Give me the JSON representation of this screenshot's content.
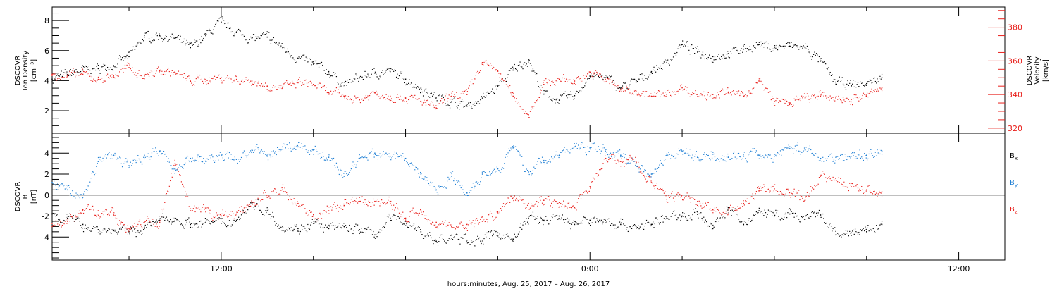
{
  "chart_data": [
    {
      "type": "scatter",
      "panel": "top",
      "ylabel": [
        "DSCOVR",
        "Ion Density",
        "[cm⁻³]"
      ],
      "ylabel_right": [
        "DSCOVR",
        "Velocity",
        "[km/s]"
      ],
      "ylim": [
        0.5,
        8.9
      ],
      "ylim_right": [
        317,
        392
      ],
      "yticks": [
        2,
        4,
        6,
        8
      ],
      "yticks_right": [
        320,
        340,
        360,
        380
      ],
      "xlim_hours": [
        6.5,
        37.5
      ],
      "series": [
        {
          "key": "density",
          "color": "#000000",
          "axis": "left",
          "x": [
            6.5,
            7,
            7.5,
            8,
            8.5,
            9,
            9.5,
            10,
            10.5,
            11,
            11.5,
            12,
            12.5,
            13,
            13.5,
            14,
            14.5,
            15,
            15.5,
            16,
            16.5,
            17,
            17.5,
            18,
            18.5,
            19,
            19.5,
            20,
            20.5,
            21,
            21.5,
            22,
            22.5,
            23,
            23.5,
            24,
            24.5,
            25,
            25.5,
            26,
            26.5,
            27,
            27.5,
            28,
            28.5,
            29,
            29.5,
            30,
            30.5,
            31,
            31.5,
            32,
            32.5,
            33,
            33.5
          ],
          "y": [
            4.1,
            4.4,
            4.7,
            4.8,
            5.0,
            5.6,
            6.9,
            7.0,
            6.8,
            6.2,
            7.0,
            7.9,
            7.2,
            6.8,
            6.9,
            6.2,
            5.5,
            5.1,
            4.6,
            3.7,
            4.2,
            4.5,
            4.6,
            4.1,
            3.5,
            2.9,
            2.6,
            2.3,
            2.8,
            3.6,
            4.7,
            5.4,
            3.1,
            2.7,
            3.0,
            4.3,
            4.2,
            3.5,
            3.9,
            4.6,
            5.2,
            6.4,
            5.9,
            5.6,
            5.8,
            6.1,
            6.4,
            6.2,
            6.3,
            6.2,
            5.3,
            3.9,
            3.7,
            3.8,
            4.2
          ]
        },
        {
          "key": "velocity",
          "color": "#e8201c",
          "axis": "right",
          "x": [
            6.5,
            7,
            7.5,
            8,
            8.5,
            9,
            9.5,
            10,
            10.5,
            11,
            11.5,
            12,
            12.5,
            13,
            13.5,
            14,
            14.5,
            15,
            15.5,
            16,
            16.5,
            17,
            17.5,
            18,
            18.5,
            19,
            19.5,
            20,
            20.5,
            21,
            21.5,
            22,
            22.5,
            23,
            23.5,
            24,
            24.5,
            25,
            25.5,
            26,
            26.5,
            27,
            27.5,
            28,
            28.5,
            29,
            29.5,
            30,
            30.5,
            31,
            31.5,
            32,
            32.5,
            33,
            33.5
          ],
          "y": [
            352,
            351,
            352,
            349,
            351,
            356,
            351,
            354,
            353,
            348,
            349,
            350,
            349,
            348,
            345,
            344,
            347,
            346,
            341,
            339,
            337,
            341,
            339,
            338,
            336,
            332,
            339,
            340,
            359,
            354,
            339,
            328,
            346,
            349,
            348,
            353,
            349,
            343,
            342,
            339,
            340,
            344,
            340,
            340,
            341,
            339,
            348,
            336,
            335,
            338,
            339,
            338,
            337,
            339,
            344
          ]
        }
      ]
    },
    {
      "type": "scatter",
      "panel": "bottom",
      "ylabel": [
        "DSCOVR",
        "B",
        "[nT]"
      ],
      "ylim": [
        -6.2,
        5.9
      ],
      "yticks": [
        -4,
        -2,
        0,
        2,
        4
      ],
      "xlim_hours": [
        6.5,
        37.5
      ],
      "zero_line": true,
      "series": [
        {
          "key": "bx",
          "name": "B",
          "sub": "x",
          "color": "#000000",
          "x": [
            6.5,
            7,
            7.5,
            8,
            8.5,
            9,
            9.5,
            10,
            10.5,
            11,
            11.5,
            12,
            12.5,
            13,
            13.5,
            14,
            14.5,
            15,
            15.5,
            16,
            16.5,
            17,
            17.5,
            18,
            18.5,
            19,
            19.5,
            20,
            20.5,
            21,
            21.5,
            22,
            22.5,
            23,
            23.5,
            24,
            24.5,
            25,
            25.5,
            26,
            26.5,
            27,
            27.5,
            28,
            28.5,
            29,
            29.5,
            30,
            30.5,
            31,
            31.5,
            32,
            32.5,
            33,
            33.5
          ],
          "y": [
            -1.8,
            -2.2,
            -2.8,
            -3.3,
            -3.4,
            -3.5,
            -3.2,
            -2.4,
            -2.2,
            -2.8,
            -2.6,
            -2.7,
            -2.4,
            -0.8,
            -1.5,
            -3.0,
            -3.2,
            -2.7,
            -3.2,
            -3.0,
            -3.3,
            -3.8,
            -2.2,
            -2.5,
            -3.5,
            -4.4,
            -4.1,
            -4.3,
            -4.3,
            -3.6,
            -4.2,
            -2.2,
            -2.4,
            -2.0,
            -2.8,
            -2.4,
            -2.4,
            -2.8,
            -3.0,
            -2.8,
            -2.2,
            -2.0,
            -1.6,
            -3.2,
            -1.2,
            -2.8,
            -1.5,
            -2.0,
            -1.8,
            -2.3,
            -1.9,
            -3.8,
            -3.6,
            -3.5,
            -2.8
          ]
        },
        {
          "key": "by",
          "name": "B",
          "sub": "y",
          "color": "#1f7fd4",
          "x": [
            6.5,
            7,
            7.5,
            8,
            8.5,
            9,
            9.5,
            10,
            10.5,
            11,
            11.5,
            12,
            12.5,
            13,
            13.5,
            14,
            14.5,
            15,
            15.5,
            16,
            16.5,
            17,
            17.5,
            18,
            18.5,
            19,
            19.5,
            20,
            20.5,
            21,
            21.5,
            22,
            22.5,
            23,
            23.5,
            24,
            24.5,
            25,
            25.5,
            26,
            26.5,
            27,
            27.5,
            28,
            28.5,
            29,
            29.5,
            30,
            30.5,
            31,
            31.5,
            32,
            32.5,
            33,
            33.5
          ],
          "y": [
            1.2,
            0.5,
            -0.2,
            3.2,
            3.8,
            2.8,
            3.8,
            4.2,
            2.5,
            3.5,
            3.2,
            3.8,
            3.4,
            4.3,
            3.7,
            4.6,
            4.6,
            4.3,
            3.6,
            1.8,
            3.5,
            4.0,
            3.7,
            3.5,
            2.0,
            0.5,
            1.8,
            0.2,
            2.0,
            2.5,
            4.5,
            2.2,
            3.3,
            3.8,
            4.6,
            4.5,
            4.2,
            3.8,
            3.0,
            2.0,
            3.8,
            4.2,
            3.6,
            3.9,
            3.6,
            3.7,
            3.8,
            3.7,
            4.6,
            4.3,
            3.5,
            3.6,
            3.7,
            3.8,
            4.2
          ]
        },
        {
          "key": "bz",
          "name": "B",
          "sub": "z",
          "color": "#e8201c",
          "x": [
            6.5,
            7,
            7.5,
            8,
            8.5,
            9,
            9.5,
            10,
            10.5,
            11,
            11.5,
            12,
            12.5,
            13,
            13.5,
            14,
            14.5,
            15,
            15.5,
            16,
            16.5,
            17,
            17.5,
            18,
            18.5,
            19,
            19.5,
            20,
            20.5,
            21,
            21.5,
            22,
            22.5,
            23,
            23.5,
            24,
            24.5,
            25,
            25.5,
            26,
            26.5,
            27,
            27.5,
            28,
            28.5,
            29,
            29.5,
            30,
            30.5,
            31,
            31.5,
            32,
            32.5,
            33,
            33.5
          ],
          "y": [
            -3.0,
            -2.5,
            -1.4,
            -1.5,
            -1.9,
            -3.2,
            -2.6,
            -2.6,
            3.0,
            -1.5,
            -1.6,
            -2.0,
            -1.8,
            -0.7,
            0.0,
            0.5,
            -0.8,
            -2.0,
            -1.5,
            -1.0,
            -0.6,
            -0.6,
            -0.8,
            -2.2,
            -1.5,
            -2.6,
            -3.0,
            -2.8,
            -2.5,
            -1.6,
            -0.2,
            -0.8,
            -0.5,
            -0.7,
            -1.2,
            0.8,
            3.5,
            3.2,
            3.2,
            1.2,
            -0.4,
            0.0,
            -0.6,
            -1.4,
            -1.8,
            -0.8,
            0.4,
            0.6,
            0.0,
            -0.5,
            1.8,
            1.6,
            0.8,
            0.5,
            0.3
          ]
        }
      ]
    }
  ],
  "xaxis": {
    "tick_labels": [
      {
        "hour": 12,
        "label": "12:00"
      },
      {
        "hour": 24,
        "label": "0:00"
      },
      {
        "hour": 36,
        "label": "12:00"
      }
    ],
    "minor_tick_step_hours": 3,
    "title": "hours:minutes, Aug. 25, 2017 – Aug. 26, 2017"
  },
  "legend": [
    {
      "text": "B",
      "sub": "x",
      "color": "#000000"
    },
    {
      "text": "B",
      "sub": "y",
      "color": "#1f7fd4"
    },
    {
      "text": "B",
      "sub": "z",
      "color": "#e8201c"
    }
  ]
}
